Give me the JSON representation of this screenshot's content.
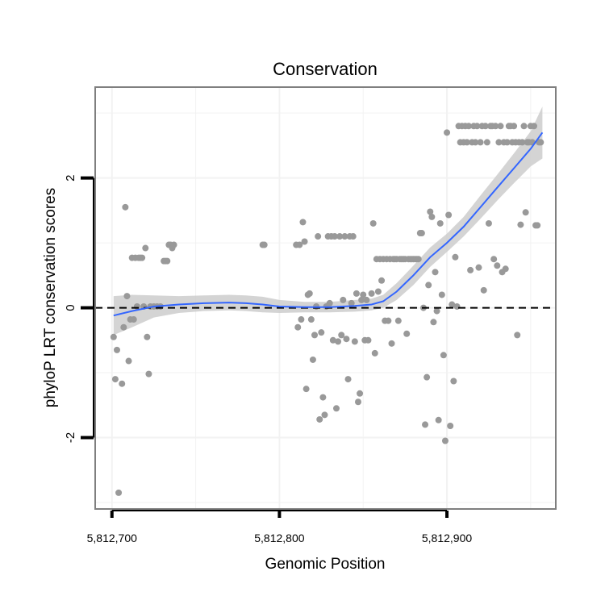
{
  "chart_data": {
    "type": "scatter",
    "title": "Conservation",
    "xlabel": "Genomic Position",
    "ylabel": "phyloP LRT conservation scores",
    "xlim": [
      5812690,
      5812965
    ],
    "ylim": [
      -3.1,
      3.4
    ],
    "x_ticks": [
      5812700,
      5812800,
      5812900
    ],
    "x_tick_labels": [
      "5,812,700",
      "5,812,800",
      "5,812,900"
    ],
    "y_ticks": [
      -2,
      0,
      2
    ],
    "y_tick_labels": [
      "-2",
      "0",
      "2"
    ],
    "grid": true,
    "legend": "none",
    "reference_line": {
      "y": 0,
      "style": "dashed",
      "color": "#000000"
    },
    "colors": {
      "points": "#999999",
      "smooth_line": "#3366FF",
      "confidence_band": "#cccccc",
      "panel_border": "#7f7f7f",
      "grid": "#f2f2f2"
    },
    "points": [
      {
        "x": 5812701,
        "y": -0.45
      },
      {
        "x": 5812702,
        "y": -1.1
      },
      {
        "x": 5812703,
        "y": -0.65
      },
      {
        "x": 5812704,
        "y": -2.85
      },
      {
        "x": 5812706,
        "y": -1.17
      },
      {
        "x": 5812707,
        "y": -0.3
      },
      {
        "x": 5812708,
        "y": 1.55
      },
      {
        "x": 5812709,
        "y": 0.18
      },
      {
        "x": 5812710,
        "y": -0.82
      },
      {
        "x": 5812711,
        "y": -0.18
      },
      {
        "x": 5812712,
        "y": 0.77
      },
      {
        "x": 5812713,
        "y": -0.18
      },
      {
        "x": 5812714,
        "y": 0.77
      },
      {
        "x": 5812715,
        "y": 0.02
      },
      {
        "x": 5812716,
        "y": 0.77
      },
      {
        "x": 5812717,
        "y": 0.77
      },
      {
        "x": 5812718,
        "y": 0.77
      },
      {
        "x": 5812719,
        "y": 0.02
      },
      {
        "x": 5812720,
        "y": 0.92
      },
      {
        "x": 5812721,
        "y": -0.45
      },
      {
        "x": 5812722,
        "y": -1.02
      },
      {
        "x": 5812723,
        "y": 0.02
      },
      {
        "x": 5812725,
        "y": 0.02
      },
      {
        "x": 5812727,
        "y": 0.02
      },
      {
        "x": 5812729,
        "y": 0.02
      },
      {
        "x": 5812731,
        "y": 0.72
      },
      {
        "x": 5812732,
        "y": 0.72
      },
      {
        "x": 5812733,
        "y": 0.72
      },
      {
        "x": 5812734,
        "y": 0.97
      },
      {
        "x": 5812735,
        "y": 0.97
      },
      {
        "x": 5812736,
        "y": 0.92
      },
      {
        "x": 5812737,
        "y": 0.97
      },
      {
        "x": 5812790,
        "y": 0.97
      },
      {
        "x": 5812791,
        "y": 0.97
      },
      {
        "x": 5812810,
        "y": 0.97
      },
      {
        "x": 5812811,
        "y": -0.3
      },
      {
        "x": 5812812,
        "y": 0.97
      },
      {
        "x": 5812813,
        "y": -0.18
      },
      {
        "x": 5812814,
        "y": 1.32
      },
      {
        "x": 5812815,
        "y": 1.02
      },
      {
        "x": 5812816,
        "y": -1.25
      },
      {
        "x": 5812817,
        "y": 0.2
      },
      {
        "x": 5812818,
        "y": 0.22
      },
      {
        "x": 5812819,
        "y": -0.18
      },
      {
        "x": 5812820,
        "y": -0.8
      },
      {
        "x": 5812821,
        "y": -0.42
      },
      {
        "x": 5812822,
        "y": 0.02
      },
      {
        "x": 5812823,
        "y": 1.1
      },
      {
        "x": 5812824,
        "y": -1.72
      },
      {
        "x": 5812825,
        "y": -0.38
      },
      {
        "x": 5812826,
        "y": -1.38
      },
      {
        "x": 5812827,
        "y": -1.65
      },
      {
        "x": 5812828,
        "y": 0.02
      },
      {
        "x": 5812829,
        "y": 1.1
      },
      {
        "x": 5812830,
        "y": 0.07
      },
      {
        "x": 5812831,
        "y": 1.1
      },
      {
        "x": 5812832,
        "y": -0.5
      },
      {
        "x": 5812833,
        "y": 1.1
      },
      {
        "x": 5812834,
        "y": -1.55
      },
      {
        "x": 5812835,
        "y": -0.52
      },
      {
        "x": 5812836,
        "y": 1.1
      },
      {
        "x": 5812837,
        "y": -0.42
      },
      {
        "x": 5812838,
        "y": 0.12
      },
      {
        "x": 5812839,
        "y": 1.1
      },
      {
        "x": 5812840,
        "y": -0.48
      },
      {
        "x": 5812841,
        "y": -1.1
      },
      {
        "x": 5812842,
        "y": 1.1
      },
      {
        "x": 5812843,
        "y": 0.07
      },
      {
        "x": 5812844,
        "y": 1.1
      },
      {
        "x": 5812845,
        "y": -0.52
      },
      {
        "x": 5812846,
        "y": 0.22
      },
      {
        "x": 5812847,
        "y": -1.45
      },
      {
        "x": 5812848,
        "y": -1.32
      },
      {
        "x": 5812849,
        "y": 0.12
      },
      {
        "x": 5812850,
        "y": 0.2
      },
      {
        "x": 5812851,
        "y": -0.5
      },
      {
        "x": 5812852,
        "y": 0.12
      },
      {
        "x": 5812853,
        "y": -0.5
      },
      {
        "x": 5812855,
        "y": 0.22
      },
      {
        "x": 5812856,
        "y": 1.3
      },
      {
        "x": 5812857,
        "y": -0.7
      },
      {
        "x": 5812858,
        "y": 0.75
      },
      {
        "x": 5812859,
        "y": 0.25
      },
      {
        "x": 5812860,
        "y": 0.75
      },
      {
        "x": 5812861,
        "y": 0.42
      },
      {
        "x": 5812862,
        "y": 0.75
      },
      {
        "x": 5812863,
        "y": -0.2
      },
      {
        "x": 5812864,
        "y": 0.75
      },
      {
        "x": 5812865,
        "y": -0.2
      },
      {
        "x": 5812866,
        "y": 0.75
      },
      {
        "x": 5812867,
        "y": -0.55
      },
      {
        "x": 5812868,
        "y": 0.75
      },
      {
        "x": 5812869,
        "y": 0.75
      },
      {
        "x": 5812870,
        "y": 0.75
      },
      {
        "x": 5812871,
        "y": -0.2
      },
      {
        "x": 5812872,
        "y": 0.75
      },
      {
        "x": 5812873,
        "y": 0.75
      },
      {
        "x": 5812874,
        "y": 0.75
      },
      {
        "x": 5812875,
        "y": 0.75
      },
      {
        "x": 5812876,
        "y": -0.4
      },
      {
        "x": 5812877,
        "y": 0.75
      },
      {
        "x": 5812878,
        "y": 0.75
      },
      {
        "x": 5812879,
        "y": 0.75
      },
      {
        "x": 5812880,
        "y": 0.75
      },
      {
        "x": 5812881,
        "y": 0.75
      },
      {
        "x": 5812882,
        "y": 0.75
      },
      {
        "x": 5812883,
        "y": 0.75
      },
      {
        "x": 5812884,
        "y": 1.15
      },
      {
        "x": 5812885,
        "y": 1.15
      },
      {
        "x": 5812886,
        "y": 0.0
      },
      {
        "x": 5812887,
        "y": -1.8
      },
      {
        "x": 5812888,
        "y": -1.07
      },
      {
        "x": 5812889,
        "y": 0.35
      },
      {
        "x": 5812890,
        "y": 1.48
      },
      {
        "x": 5812891,
        "y": 1.4
      },
      {
        "x": 5812892,
        "y": -0.22
      },
      {
        "x": 5812893,
        "y": 0.55
      },
      {
        "x": 5812894,
        "y": -0.05
      },
      {
        "x": 5812895,
        "y": -1.73
      },
      {
        "x": 5812896,
        "y": 1.3
      },
      {
        "x": 5812897,
        "y": 0.2
      },
      {
        "x": 5812898,
        "y": -0.73
      },
      {
        "x": 5812899,
        "y": -2.05
      },
      {
        "x": 5812900,
        "y": 2.7
      },
      {
        "x": 5812901,
        "y": 1.43
      },
      {
        "x": 5812902,
        "y": -1.82
      },
      {
        "x": 5812903,
        "y": 0.05
      },
      {
        "x": 5812904,
        "y": -1.13
      },
      {
        "x": 5812905,
        "y": 0.78
      },
      {
        "x": 5812906,
        "y": 0.02
      },
      {
        "x": 5812907,
        "y": 2.8
      },
      {
        "x": 5812908,
        "y": 2.55
      },
      {
        "x": 5812909,
        "y": 2.8
      },
      {
        "x": 5812910,
        "y": 2.55
      },
      {
        "x": 5812911,
        "y": 2.8
      },
      {
        "x": 5812912,
        "y": 2.55
      },
      {
        "x": 5812913,
        "y": 2.8
      },
      {
        "x": 5812914,
        "y": 0.58
      },
      {
        "x": 5812915,
        "y": 2.55
      },
      {
        "x": 5812916,
        "y": 2.8
      },
      {
        "x": 5812917,
        "y": 2.55
      },
      {
        "x": 5812918,
        "y": 2.8
      },
      {
        "x": 5812919,
        "y": 0.62
      },
      {
        "x": 5812920,
        "y": 2.55
      },
      {
        "x": 5812921,
        "y": 2.8
      },
      {
        "x": 5812922,
        "y": 0.27
      },
      {
        "x": 5812923,
        "y": 2.8
      },
      {
        "x": 5812924,
        "y": 2.55
      },
      {
        "x": 5812925,
        "y": 1.3
      },
      {
        "x": 5812926,
        "y": 2.8
      },
      {
        "x": 5812927,
        "y": 2.8
      },
      {
        "x": 5812928,
        "y": 0.75
      },
      {
        "x": 5812929,
        "y": 2.8
      },
      {
        "x": 5812930,
        "y": 0.65
      },
      {
        "x": 5812931,
        "y": 2.55
      },
      {
        "x": 5812932,
        "y": 2.8
      },
      {
        "x": 5812933,
        "y": 0.55
      },
      {
        "x": 5812934,
        "y": 2.55
      },
      {
        "x": 5812935,
        "y": 0.6
      },
      {
        "x": 5812936,
        "y": 2.55
      },
      {
        "x": 5812937,
        "y": 2.8
      },
      {
        "x": 5812938,
        "y": 2.8
      },
      {
        "x": 5812939,
        "y": 2.55
      },
      {
        "x": 5812940,
        "y": 2.8
      },
      {
        "x": 5812941,
        "y": 2.55
      },
      {
        "x": 5812942,
        "y": -0.42
      },
      {
        "x": 5812943,
        "y": 2.55
      },
      {
        "x": 5812944,
        "y": 1.28
      },
      {
        "x": 5812945,
        "y": 2.55
      },
      {
        "x": 5812946,
        "y": 2.8
      },
      {
        "x": 5812947,
        "y": 1.47
      },
      {
        "x": 5812948,
        "y": 2.55
      },
      {
        "x": 5812949,
        "y": 2.55
      },
      {
        "x": 5812950,
        "y": 2.8
      },
      {
        "x": 5812951,
        "y": 2.55
      },
      {
        "x": 5812952,
        "y": 2.8
      },
      {
        "x": 5812953,
        "y": 1.27
      },
      {
        "x": 5812954,
        "y": 1.27
      },
      {
        "x": 5812955,
        "y": 2.55
      },
      {
        "x": 5812956,
        "y": 2.55
      }
    ],
    "smooth": {
      "x": [
        5812701,
        5812712,
        5812725,
        5812740,
        5812755,
        5812770,
        5812780,
        5812790,
        5812800,
        5812815,
        5812830,
        5812845,
        5812855,
        5812862,
        5812870,
        5812880,
        5812890,
        5812900,
        5812910,
        5812920,
        5812930,
        5812940,
        5812950,
        5812957
      ],
      "y": [
        -0.12,
        -0.05,
        0.02,
        0.05,
        0.07,
        0.08,
        0.07,
        0.05,
        0.02,
        0.01,
        0.01,
        0.03,
        0.05,
        0.1,
        0.25,
        0.5,
        0.78,
        1.0,
        1.25,
        1.55,
        1.85,
        2.15,
        2.45,
        2.7
      ],
      "lower": [
        -0.42,
        -0.3,
        -0.15,
        -0.08,
        -0.05,
        -0.04,
        -0.05,
        -0.07,
        -0.08,
        -0.07,
        -0.07,
        -0.06,
        -0.04,
        0.0,
        0.12,
        0.35,
        0.63,
        0.86,
        1.1,
        1.37,
        1.65,
        1.92,
        2.18,
        2.3
      ],
      "upper": [
        0.18,
        0.2,
        0.19,
        0.18,
        0.19,
        0.2,
        0.19,
        0.17,
        0.12,
        0.09,
        0.09,
        0.12,
        0.14,
        0.2,
        0.38,
        0.65,
        0.93,
        1.14,
        1.4,
        1.73,
        2.05,
        2.38,
        2.72,
        3.1
      ]
    }
  }
}
